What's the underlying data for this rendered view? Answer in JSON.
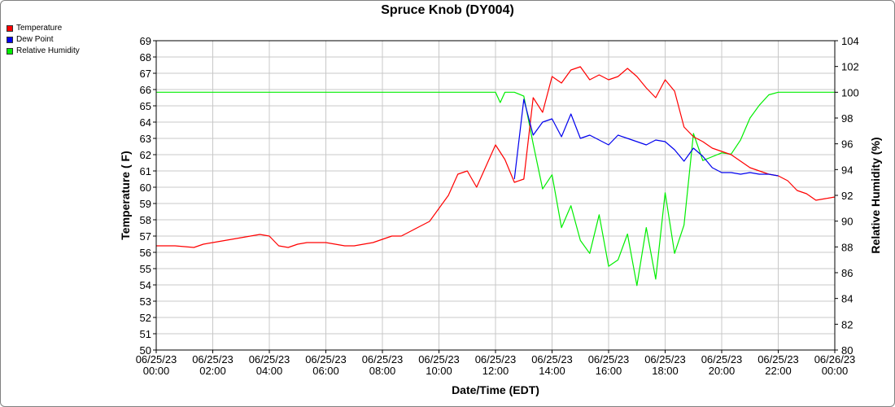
{
  "chart_data": {
    "type": "line",
    "title": "Spruce Knob (DY004)",
    "xlabel": "Date/Time (EDT)",
    "ylabel": "Temperature ( F)",
    "y2label": "Relative Humidity (%)",
    "x_ticks": [
      {
        "date": "06/25/23",
        "time": "00:00"
      },
      {
        "date": "06/25/23",
        "time": "02:00"
      },
      {
        "date": "06/25/23",
        "time": "04:00"
      },
      {
        "date": "06/25/23",
        "time": "06:00"
      },
      {
        "date": "06/25/23",
        "time": "08:00"
      },
      {
        "date": "06/25/23",
        "time": "10:00"
      },
      {
        "date": "06/25/23",
        "time": "12:00"
      },
      {
        "date": "06/25/23",
        "time": "14:00"
      },
      {
        "date": "06/25/23",
        "time": "16:00"
      },
      {
        "date": "06/25/23",
        "time": "18:00"
      },
      {
        "date": "06/25/23",
        "time": "20:00"
      },
      {
        "date": "06/25/23",
        "time": "22:00"
      },
      {
        "date": "06/26/23",
        "time": "00:00"
      }
    ],
    "xlim": [
      "06/25/23 00:00",
      "06/26/23 00:00"
    ],
    "ylim": [
      50,
      69
    ],
    "y2lim": [
      80,
      104
    ],
    "y_ticks": [
      50,
      51,
      52,
      53,
      54,
      55,
      56,
      57,
      58,
      59,
      60,
      61,
      62,
      63,
      64,
      65,
      66,
      67,
      68,
      69
    ],
    "y2_ticks": [
      80,
      82,
      84,
      86,
      88,
      90,
      92,
      94,
      96,
      98,
      100,
      102,
      104
    ],
    "grid": true,
    "legend_position": "top-left",
    "colors": {
      "temperature": "#ff0000",
      "dew_point": "#0000ee",
      "relative_humidity": "#00ee00",
      "overlap": "#a0003c"
    },
    "series": [
      {
        "name": "Temperature",
        "axis": "left",
        "x": [
          "06/25/23 00:00",
          "06/25/23 00:20",
          "06/25/23 00:40",
          "06/25/23 01:20",
          "06/25/23 01:40",
          "06/25/23 02:00",
          "06/25/23 02:20",
          "06/25/23 02:40",
          "06/25/23 03:00",
          "06/25/23 03:20",
          "06/25/23 03:40",
          "06/25/23 04:00",
          "06/25/23 04:20",
          "06/25/23 04:40",
          "06/25/23 05:00",
          "06/25/23 05:20",
          "06/25/23 05:40",
          "06/25/23 06:00",
          "06/25/23 06:20",
          "06/25/23 06:40",
          "06/25/23 07:00",
          "06/25/23 07:20",
          "06/25/23 07:40",
          "06/25/23 08:00",
          "06/25/23 08:20",
          "06/25/23 08:40",
          "06/25/23 09:00",
          "06/25/23 09:20",
          "06/25/23 09:40",
          "06/25/23 10:00",
          "06/25/23 10:20",
          "06/25/23 10:40",
          "06/25/23 11:00",
          "06/25/23 11:20",
          "06/25/23 11:40",
          "06/25/23 12:00",
          "06/25/23 12:20",
          "06/25/23 12:40",
          "06/25/23 13:00",
          "06/25/23 13:20",
          "06/25/23 13:40",
          "06/25/23 14:00",
          "06/25/23 14:20",
          "06/25/23 14:40",
          "06/25/23 15:00",
          "06/25/23 15:20",
          "06/25/23 15:40",
          "06/25/23 16:00",
          "06/25/23 16:20",
          "06/25/23 16:40",
          "06/25/23 17:00",
          "06/25/23 17:20",
          "06/25/23 17:40",
          "06/25/23 18:00",
          "06/25/23 18:20",
          "06/25/23 18:40",
          "06/25/23 19:00",
          "06/25/23 19:20",
          "06/25/23 19:40",
          "06/25/23 20:00",
          "06/25/23 20:20",
          "06/25/23 20:40",
          "06/25/23 21:00",
          "06/25/23 21:20",
          "06/25/23 21:40",
          "06/25/23 22:00",
          "06/25/23 22:20",
          "06/25/23 22:40",
          "06/25/23 23:00",
          "06/25/23 23:20",
          "06/25/23 23:40",
          "06/26/23 00:00"
        ],
        "values": [
          56.4,
          56.4,
          56.4,
          56.3,
          56.5,
          56.6,
          56.7,
          56.8,
          56.9,
          57.0,
          57.1,
          57.0,
          56.4,
          56.3,
          56.5,
          56.6,
          56.6,
          56.6,
          56.5,
          56.4,
          56.4,
          56.5,
          56.6,
          56.8,
          57.0,
          57.0,
          57.3,
          57.6,
          57.9,
          58.7,
          59.5,
          60.8,
          61.0,
          60.0,
          61.3,
          62.6,
          61.7,
          60.3,
          60.5,
          65.5,
          64.6,
          66.8,
          66.4,
          67.2,
          67.4,
          66.6,
          66.9,
          66.6,
          66.8,
          67.3,
          66.8,
          66.1,
          65.5,
          66.6,
          65.9,
          63.7,
          63.1,
          62.8,
          62.4,
          62.2,
          62.0,
          61.6,
          61.2,
          61.0,
          60.8,
          60.7,
          60.4,
          59.8,
          59.6,
          59.2,
          59.3,
          59.4
        ]
      },
      {
        "name": "Dew Point",
        "axis": "left",
        "x": [
          "06/25/23 12:40",
          "06/25/23 13:00",
          "06/25/23 13:20",
          "06/25/23 13:40",
          "06/25/23 14:00",
          "06/25/23 14:20",
          "06/25/23 14:40",
          "06/25/23 15:00",
          "06/25/23 15:20",
          "06/25/23 15:40",
          "06/25/23 16:00",
          "06/25/23 16:20",
          "06/25/23 16:40",
          "06/25/23 17:00",
          "06/25/23 17:20",
          "06/25/23 17:40",
          "06/25/23 18:00",
          "06/25/23 18:20",
          "06/25/23 18:40",
          "06/25/23 19:00",
          "06/25/23 19:20",
          "06/25/23 19:40",
          "06/25/23 20:00",
          "06/25/23 20:20",
          "06/25/23 20:40",
          "06/25/23 21:00",
          "06/25/23 21:20",
          "06/25/23 21:40",
          "06/25/23 22:00"
        ],
        "values": [
          60.5,
          65.4,
          63.2,
          64.0,
          64.2,
          63.1,
          64.5,
          63.0,
          63.2,
          62.9,
          62.6,
          63.2,
          63.0,
          62.8,
          62.6,
          62.9,
          62.8,
          62.3,
          61.6,
          62.4,
          61.9,
          61.2,
          60.9,
          60.9,
          60.8,
          60.9,
          60.8,
          60.8,
          60.7
        ]
      },
      {
        "name": "Relative Humidity",
        "axis": "right",
        "x": [
          "06/25/23 00:00",
          "06/25/23 12:00",
          "06/25/23 12:10",
          "06/25/23 12:20",
          "06/25/23 12:40",
          "06/25/23 13:00",
          "06/25/23 13:20",
          "06/25/23 13:40",
          "06/25/23 14:00",
          "06/25/23 14:20",
          "06/25/23 14:40",
          "06/25/23 15:00",
          "06/25/23 15:20",
          "06/25/23 15:40",
          "06/25/23 16:00",
          "06/25/23 16:20",
          "06/25/23 16:40",
          "06/25/23 17:00",
          "06/25/23 17:20",
          "06/25/23 17:40",
          "06/25/23 18:00",
          "06/25/23 18:20",
          "06/25/23 18:40",
          "06/25/23 19:00",
          "06/25/23 19:20",
          "06/25/23 19:40",
          "06/25/23 20:00",
          "06/25/23 20:20",
          "06/25/23 20:40",
          "06/25/23 21:00",
          "06/25/23 21:20",
          "06/25/23 21:40",
          "06/25/23 22:00",
          "06/26/23 00:00"
        ],
        "values": [
          100,
          100,
          99.2,
          100,
          100,
          99.7,
          96.0,
          92.5,
          93.6,
          89.5,
          91.2,
          88.5,
          87.5,
          90.5,
          86.5,
          87.0,
          89.0,
          85.0,
          89.5,
          85.5,
          92.2,
          87.5,
          89.7,
          96.8,
          94.7,
          95.0,
          95.3,
          95.2,
          96.3,
          98.0,
          99.0,
          99.8,
          100,
          100
        ]
      }
    ]
  }
}
